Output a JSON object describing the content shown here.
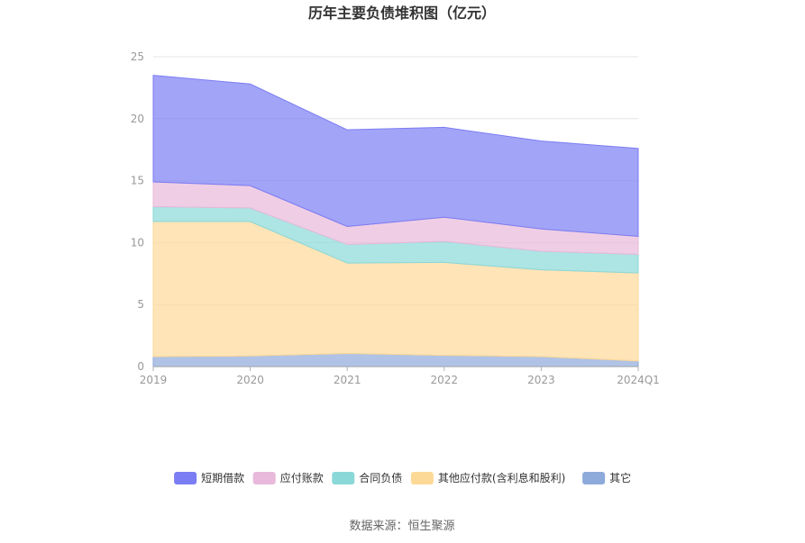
{
  "chart_data": {
    "type": "area",
    "stacked": true,
    "title": "历年主要负债堆积图（亿元）",
    "categories": [
      "2019",
      "2020",
      "2021",
      "2022",
      "2023",
      "2024Q1"
    ],
    "ylim": [
      0,
      25
    ],
    "yticks": [
      "0",
      "5",
      "10",
      "15",
      "20",
      "25"
    ],
    "grid": true,
    "legend_position": "bottom",
    "series": [
      {
        "name": "其它",
        "color": "#8eaadb",
        "values": [
          0.8,
          0.85,
          1.05,
          0.9,
          0.8,
          0.45
        ]
      },
      {
        "name": "其他应付款(含利息和股利)",
        "color": "#fdd998",
        "values": [
          10.9,
          10.85,
          7.3,
          7.5,
          7.0,
          7.1
        ]
      },
      {
        "name": "合同负债",
        "color": "#8ad8d8",
        "values": [
          1.2,
          1.1,
          1.5,
          1.7,
          1.5,
          1.5
        ]
      },
      {
        "name": "应付账款",
        "color": "#e8b9da",
        "values": [
          2.0,
          1.8,
          1.45,
          1.95,
          1.8,
          1.45
        ]
      },
      {
        "name": "短期借款",
        "color": "#7b7df3",
        "values": [
          8.6,
          8.2,
          7.8,
          7.25,
          7.1,
          7.1
        ]
      }
    ],
    "legend_order": [
      "短期借款",
      "应付账款",
      "合同负债",
      "其他应付款(含利息和股利)",
      "其它"
    ]
  },
  "source": "数据来源：恒生聚源"
}
